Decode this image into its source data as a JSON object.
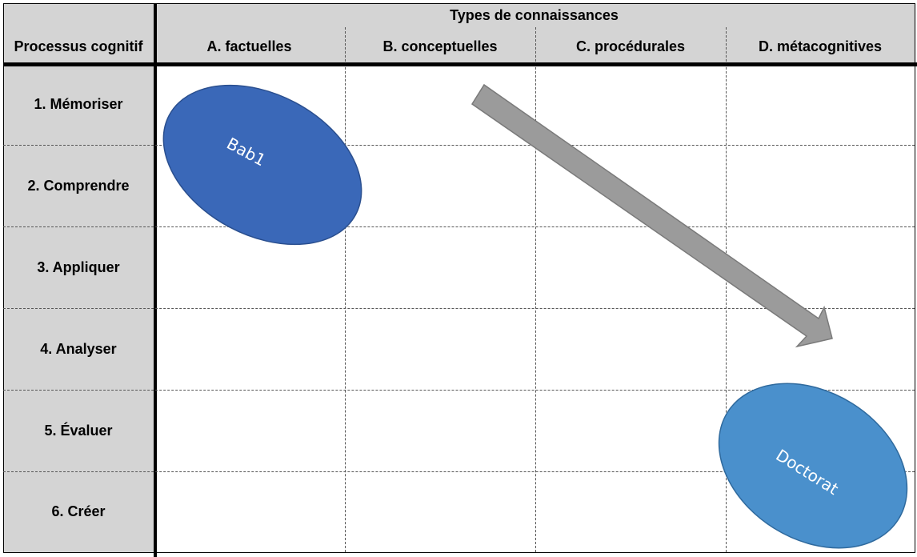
{
  "table": {
    "group_header": "Types de connaissances",
    "row_header_title": "Processus cognitif",
    "columns": [
      "A. factuelles",
      "B. conceptuelles",
      "C. procédurales",
      "D. métacognitives"
    ],
    "rows": [
      "1. Mémoriser",
      "2. Comprendre",
      "3. Appliquer",
      "4. Analyser",
      "5. Évaluer",
      "6. Créer"
    ]
  },
  "shapes": {
    "start_label": "Bab1",
    "end_label": "Doctorat",
    "start_color": "#3a68b8",
    "end_color": "#4a90cc",
    "arrow_color": "#9b9b9b"
  }
}
